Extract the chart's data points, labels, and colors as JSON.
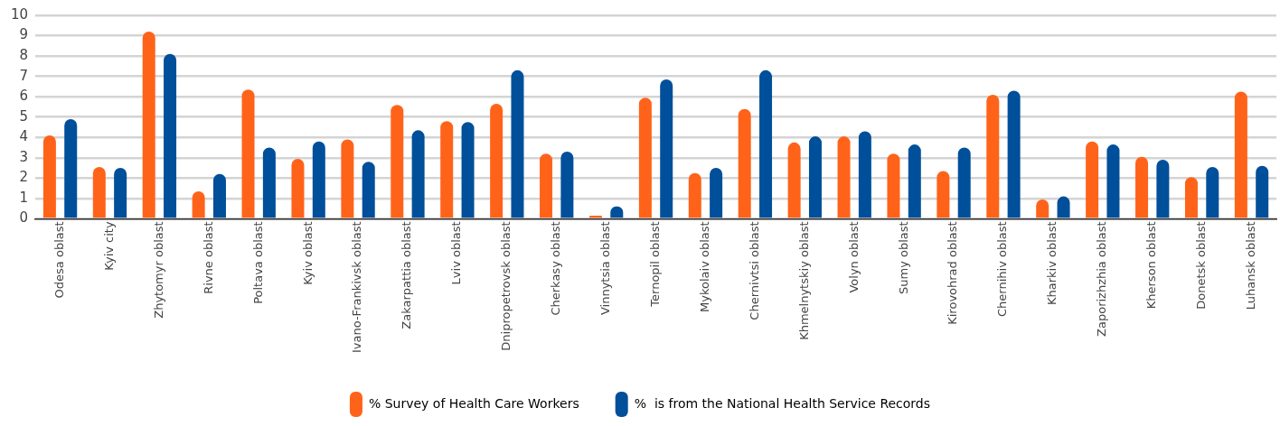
{
  "chart_data": {
    "type": "bar",
    "categories": [
      "Odesa oblast",
      "Kyiv city",
      "Zhytomyr oblast",
      "Rivne oblast",
      "Poltava oblast",
      "Kyiv oblast",
      "Ivano-Frankivsk oblast",
      "Zakarpattia oblast",
      "Lviv oblast",
      "Dnipropetrovsk oblast",
      "Cherkasy oblast",
      "Vinnytsia oblast",
      "Ternopil oblast",
      "Mykolaiv oblast",
      "Chernivtsi oblast",
      "Khmelnytskiy oblast",
      "Volyn oblast",
      "Sumy oblast",
      "Kirovohrad oblast",
      "Chernihiv oblast",
      "Kharkiv oblast",
      "Zaporizhzhia oblast",
      "Kherson oblast",
      "Donetsk oblast",
      "Luhansk oblast"
    ],
    "series": [
      {
        "name": "% Survey of Health Care Workers",
        "color": "#ff6319",
        "values": [
          4.1,
          2.55,
          9.2,
          1.35,
          6.35,
          2.95,
          3.9,
          5.6,
          4.8,
          5.65,
          3.2,
          0.15,
          5.95,
          2.25,
          5.4,
          3.75,
          4.05,
          3.2,
          2.35,
          6.1,
          0.95,
          3.8,
          3.05,
          2.05,
          6.25
        ]
      },
      {
        "name": "%  is from the National Health Service Records",
        "color": "#004f9a",
        "values": [
          4.9,
          2.5,
          8.1,
          2.2,
          3.5,
          3.8,
          2.8,
          4.35,
          4.75,
          7.3,
          3.3,
          0.6,
          6.85,
          2.5,
          7.3,
          4.05,
          4.3,
          3.65,
          3.5,
          6.3,
          1.1,
          3.65,
          2.9,
          2.55,
          2.6
        ]
      }
    ],
    "ylim": [
      0,
      10
    ],
    "yticks": [
      0,
      1,
      2,
      3,
      4,
      5,
      6,
      7,
      8,
      9,
      10
    ],
    "grid": "y",
    "legend": "bottom"
  }
}
